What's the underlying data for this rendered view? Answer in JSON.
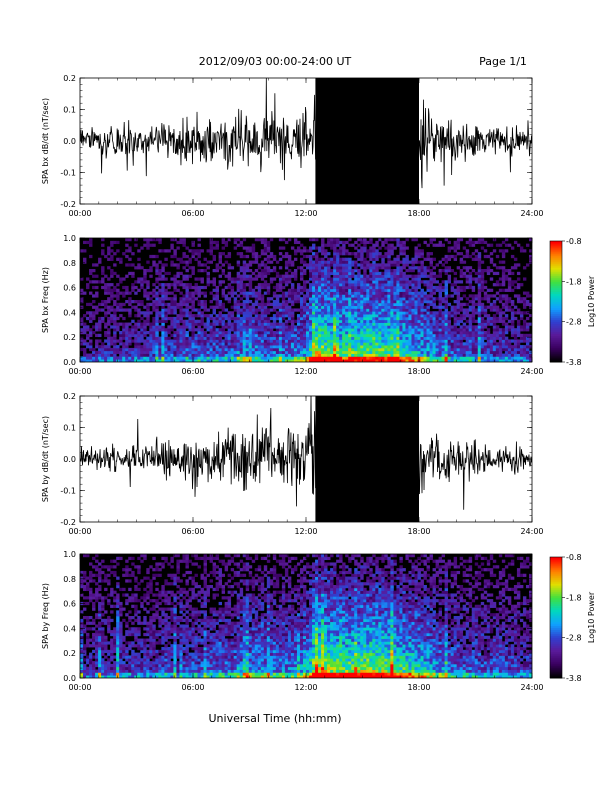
{
  "header": {
    "title": "2012/09/03  00:00-24:00 UT",
    "page_label": "Page 1/1"
  },
  "footer": {
    "xlabel": "Universal Time (hh:mm)"
  },
  "colors": {
    "trace": "#000000",
    "spectrogram_background": "#000000",
    "colormap": [
      "#000000",
      "#3a0060",
      "#5a1a9a",
      "#3040d0",
      "#10a0ff",
      "#00d8c0",
      "#40e040",
      "#e0e000",
      "#ff8000",
      "#ff0000"
    ]
  },
  "chart_data": [
    {
      "id": "bx-timeseries",
      "type": "line",
      "ylabel": "SPA bx dB/dt (nT/sec)",
      "x_tick_labels": [
        "00:00",
        "06:00",
        "12:00",
        "18:00",
        "24:00"
      ],
      "x_ticks_hours": [
        0,
        6,
        12,
        18,
        24
      ],
      "xlim_hours": [
        0,
        24
      ],
      "ylim": [
        -0.2,
        0.2
      ],
      "y_tick_labels": [
        "-0.2",
        "-0.1",
        "0.0",
        "0.1",
        "0.2"
      ],
      "y_ticks": [
        -0.2,
        -0.1,
        0.0,
        0.1,
        0.2
      ],
      "grid": false,
      "envelope": {
        "hours": [
          0,
          1,
          2,
          3,
          4,
          5,
          6,
          7,
          8,
          9,
          10,
          11,
          12,
          12.5,
          13,
          14,
          15,
          16,
          17,
          18,
          19,
          20,
          21,
          22,
          23,
          24
        ],
        "amplitude": [
          0.05,
          0.06,
          0.07,
          0.07,
          0.08,
          0.09,
          0.12,
          0.13,
          0.12,
          0.16,
          0.14,
          0.12,
          0.16,
          0.24,
          0.3,
          0.3,
          0.3,
          0.28,
          0.24,
          0.2,
          0.13,
          0.09,
          0.08,
          0.07,
          0.07,
          0.06
        ]
      }
    },
    {
      "id": "bx-spectrogram",
      "type": "heatmap",
      "ylabel": "SPA bx Freq (Hz)",
      "x_tick_labels": [
        "00:00",
        "06:00",
        "12:00",
        "18:00",
        "24:00"
      ],
      "x_ticks_hours": [
        0,
        6,
        12,
        18,
        24
      ],
      "xlim_hours": [
        0,
        24
      ],
      "ylim": [
        0.0,
        1.0
      ],
      "y_tick_labels": [
        "0.0",
        "0.2",
        "0.4",
        "0.6",
        "0.8",
        "1.0"
      ],
      "y_ticks": [
        0.0,
        0.2,
        0.4,
        0.6,
        0.8,
        1.0
      ],
      "colorbar": {
        "label": "Log10 Power",
        "range": [
          -3.8,
          -0.8
        ],
        "tick_labels": [
          "-0.8",
          "-1.8",
          "-2.8",
          "-3.8"
        ],
        "ticks": [
          -0.8,
          -1.8,
          -2.8,
          -3.8
        ]
      },
      "activity_profile": {
        "hours": [
          0,
          2,
          4,
          6,
          8,
          9,
          10,
          11,
          12,
          12.5,
          13,
          14,
          15,
          16,
          17,
          18,
          19,
          20,
          22,
          24
        ],
        "level": [
          0.25,
          0.3,
          0.35,
          0.4,
          0.4,
          0.5,
          0.45,
          0.45,
          0.55,
          1.0,
          0.9,
          0.8,
          0.85,
          0.85,
          0.75,
          0.65,
          0.5,
          0.4,
          0.35,
          0.3
        ]
      }
    },
    {
      "id": "by-timeseries",
      "type": "line",
      "ylabel": "SPA by dB/dt (nT/sec)",
      "x_tick_labels": [
        "00:00",
        "06:00",
        "12:00",
        "18:00",
        "24:00"
      ],
      "x_ticks_hours": [
        0,
        6,
        12,
        18,
        24
      ],
      "xlim_hours": [
        0,
        24
      ],
      "ylim": [
        -0.2,
        0.2
      ],
      "y_tick_labels": [
        "-0.2",
        "-0.1",
        "0.0",
        "0.1",
        "0.2"
      ],
      "y_ticks": [
        -0.2,
        -0.1,
        0.0,
        0.1,
        0.2
      ],
      "grid": false,
      "envelope": {
        "hours": [
          0,
          1,
          2,
          3,
          4,
          5,
          6,
          7,
          8,
          9,
          10,
          11,
          12,
          12.5,
          13,
          14,
          15,
          16,
          17,
          18,
          19,
          20,
          21,
          22,
          23,
          24
        ],
        "amplitude": [
          0.05,
          0.06,
          0.07,
          0.07,
          0.08,
          0.09,
          0.11,
          0.13,
          0.14,
          0.17,
          0.15,
          0.12,
          0.16,
          0.26,
          0.3,
          0.3,
          0.3,
          0.3,
          0.26,
          0.2,
          0.12,
          0.09,
          0.08,
          0.07,
          0.07,
          0.06
        ]
      }
    },
    {
      "id": "by-spectrogram",
      "type": "heatmap",
      "ylabel": "SPA by Freq (Hz)",
      "x_tick_labels": [
        "00:00",
        "06:00",
        "12:00",
        "18:00",
        "24:00"
      ],
      "x_ticks_hours": [
        0,
        6,
        12,
        18,
        24
      ],
      "xlim_hours": [
        0,
        24
      ],
      "ylim": [
        0.0,
        1.0
      ],
      "y_tick_labels": [
        "0.0",
        "0.2",
        "0.4",
        "0.6",
        "0.8",
        "1.0"
      ],
      "y_ticks": [
        0.0,
        0.2,
        0.4,
        0.6,
        0.8,
        1.0
      ],
      "colorbar": {
        "label": "Log10 Power",
        "range": [
          -3.8,
          -0.8
        ],
        "tick_labels": [
          "-0.8",
          "-1.8",
          "-2.8",
          "-3.8"
        ],
        "ticks": [
          -0.8,
          -1.8,
          -2.8,
          -3.8
        ]
      },
      "activity_profile": {
        "hours": [
          0,
          2,
          4,
          6,
          8,
          9,
          10,
          11,
          12,
          12.5,
          13,
          14,
          15,
          16,
          17,
          18,
          19,
          20,
          22,
          24
        ],
        "level": [
          0.3,
          0.35,
          0.35,
          0.4,
          0.45,
          0.55,
          0.5,
          0.5,
          0.55,
          1.0,
          0.95,
          0.85,
          0.9,
          0.9,
          0.8,
          0.7,
          0.55,
          0.45,
          0.4,
          0.35
        ]
      }
    }
  ]
}
